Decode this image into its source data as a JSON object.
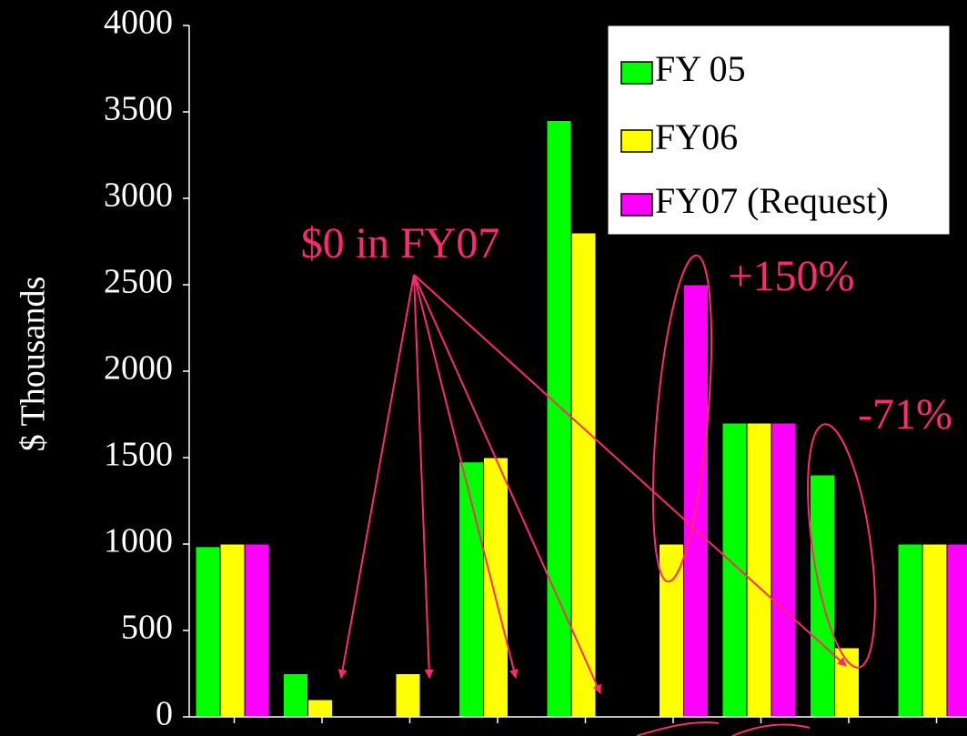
{
  "chart_data": {
    "type": "bar",
    "y_label": "$ Thousands",
    "categories": [
      null,
      null,
      null,
      null,
      null,
      null,
      null,
      null,
      null
    ],
    "series": [
      {
        "name": "FY 05",
        "color": "#00ff00",
        "values": [
          985,
          250,
          0,
          1475,
          3450,
          0,
          1700,
          1400,
          1000
        ]
      },
      {
        "name": "FY06",
        "color": "#ffff00",
        "values": [
          1000,
          100,
          250,
          1500,
          2800,
          1000,
          1700,
          400,
          1000
        ]
      },
      {
        "name": "FY07 (Request)",
        "color": "#ff00ff",
        "values": [
          1000,
          0,
          0,
          0,
          0,
          2500,
          1700,
          0,
          1000
        ]
      }
    ],
    "ylim": [
      0,
      4000
    ],
    "yticks": [
      0,
      500,
      1000,
      1500,
      2000,
      2500,
      3000,
      3500,
      4000
    ],
    "grid": false,
    "legend": "upper right",
    "annotations": [
      "$0 in FY07",
      "+150%",
      "-71%"
    ],
    "annotation_color": "#ff2a6d"
  }
}
